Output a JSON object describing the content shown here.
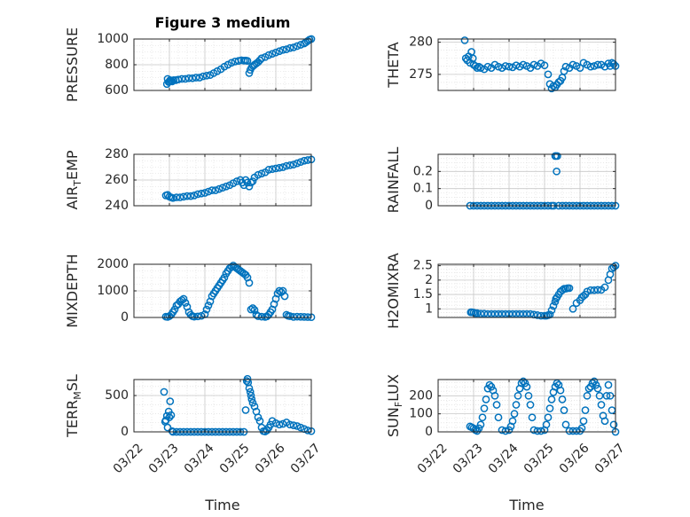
{
  "figure": {
    "title": "Figure 3 medium",
    "marker_color": "#0072BD",
    "axis_color": "#262626",
    "grid": true,
    "grid_minor": true
  },
  "chart_data": [
    {
      "id": "pressure",
      "type": "scatter",
      "ylabel": {
        "main": "PRESSURE",
        "sub": "",
        "tail": ""
      },
      "ylim": [
        600,
        1000
      ],
      "yticks": [
        600,
        800,
        1000
      ],
      "ytick_labels": [
        "600",
        "800",
        "1000"
      ],
      "xlim": [
        0,
        5
      ],
      "xticks": [
        0,
        1,
        2,
        3,
        4,
        5
      ],
      "x": [
        0.93,
        0.95,
        0.98,
        1.0,
        1.02,
        1.05,
        1.08,
        1.12,
        1.18,
        1.25,
        1.35,
        1.45,
        1.55,
        1.65,
        1.75,
        1.85,
        1.95,
        2.05,
        2.15,
        2.25,
        2.35,
        2.45,
        2.55,
        2.65,
        2.75,
        2.85,
        2.95,
        3.03,
        3.1,
        3.15,
        3.2,
        3.25,
        3.28,
        3.32,
        3.36,
        3.4,
        3.45,
        3.5,
        3.55,
        3.6,
        3.7,
        3.8,
        3.9,
        4.0,
        4.1,
        4.2,
        4.3,
        4.4,
        4.5,
        4.6,
        4.7,
        4.8,
        4.85,
        4.9,
        4.95,
        5.0
      ],
      "y": [
        650,
        690,
        665,
        670,
        680,
        675,
        670,
        680,
        680,
        685,
        690,
        690,
        695,
        695,
        700,
        700,
        710,
        715,
        720,
        735,
        750,
        765,
        785,
        800,
        815,
        825,
        830,
        835,
        832,
        833,
        830,
        735,
        760,
        780,
        790,
        800,
        810,
        820,
        835,
        850,
        860,
        875,
        885,
        895,
        905,
        915,
        920,
        930,
        935,
        945,
        955,
        965,
        975,
        985,
        995,
        1000
      ]
    },
    {
      "id": "theta",
      "type": "scatter",
      "ylabel": {
        "main": "THETA",
        "sub": "",
        "tail": ""
      },
      "ylim": [
        272.5,
        280.5
      ],
      "yticks": [
        275,
        280
      ],
      "ytick_labels": [
        "275",
        "280"
      ],
      "xlim": [
        0,
        5
      ],
      "xticks": [
        0,
        1,
        2,
        3,
        4,
        5
      ],
      "x": [
        0.75,
        0.78,
        0.82,
        0.86,
        0.9,
        0.94,
        0.98,
        1.0,
        1.05,
        1.1,
        1.15,
        1.2,
        1.3,
        1.4,
        1.5,
        1.6,
        1.7,
        1.8,
        1.9,
        2.0,
        2.1,
        2.2,
        2.3,
        2.4,
        2.5,
        2.6,
        2.7,
        2.8,
        2.9,
        3.0,
        3.1,
        3.15,
        3.2,
        3.25,
        3.3,
        3.35,
        3.4,
        3.45,
        3.5,
        3.55,
        3.6,
        3.7,
        3.8,
        3.9,
        4.0,
        4.1,
        4.2,
        4.3,
        4.4,
        4.5,
        4.6,
        4.7,
        4.8,
        4.85,
        4.9,
        4.95,
        5.0
      ],
      "y": [
        280.3,
        277.5,
        277.2,
        277.8,
        276.8,
        278.5,
        277.5,
        276.5,
        276.3,
        276.0,
        276.2,
        276.0,
        275.8,
        276.2,
        276.0,
        276.5,
        276.2,
        276.0,
        276.3,
        276.2,
        276.1,
        276.4,
        276.2,
        276.5,
        276.3,
        276.0,
        276.5,
        276.3,
        276.7,
        276.4,
        275.0,
        273.5,
        272.8,
        273.2,
        273.0,
        273.4,
        273.8,
        274.0,
        274.5,
        275.5,
        276.2,
        276.0,
        276.5,
        276.3,
        276.0,
        276.8,
        276.5,
        276.2,
        276.3,
        276.5,
        276.5,
        276.2,
        276.7,
        276.3,
        276.8,
        276.6,
        276.3
      ]
    },
    {
      "id": "air-temp",
      "type": "scatter",
      "ylabel": {
        "main": "AIR",
        "sub": "T",
        "tail": "EMP"
      },
      "ylim": [
        240,
        280
      ],
      "yticks": [
        240,
        260,
        280
      ],
      "ytick_labels": [
        "240",
        "260",
        "280"
      ],
      "xlim": [
        0,
        5
      ],
      "xticks": [
        0,
        1,
        2,
        3,
        4,
        5
      ],
      "x": [
        0.9,
        0.95,
        1.0,
        1.05,
        1.1,
        1.2,
        1.3,
        1.4,
        1.5,
        1.6,
        1.7,
        1.8,
        1.9,
        2.0,
        2.1,
        2.2,
        2.3,
        2.4,
        2.5,
        2.6,
        2.7,
        2.8,
        2.9,
        3.0,
        3.05,
        3.1,
        3.15,
        3.2,
        3.25,
        3.3,
        3.35,
        3.4,
        3.5,
        3.6,
        3.7,
        3.8,
        3.9,
        4.0,
        4.1,
        4.2,
        4.3,
        4.4,
        4.5,
        4.6,
        4.7,
        4.8,
        4.9,
        5.0
      ],
      "y": [
        248,
        248.5,
        247,
        246.5,
        246,
        246.5,
        246.5,
        247,
        247.5,
        247.5,
        248,
        249,
        249.5,
        250,
        251,
        252,
        252,
        253,
        254,
        255,
        256,
        257.5,
        259,
        260,
        258,
        256,
        260,
        258,
        255,
        258,
        259,
        262,
        264,
        265,
        266,
        268,
        268.5,
        269,
        269.5,
        270,
        271,
        271.5,
        272,
        273,
        274,
        275,
        275.5,
        276
      ]
    },
    {
      "id": "rainfall",
      "type": "scatter",
      "ylabel": {
        "main": "RAINFALL",
        "sub": "",
        "tail": ""
      },
      "ylim": [
        0,
        0.3
      ],
      "yticks": [
        0,
        0.1,
        0.2
      ],
      "ytick_labels": [
        "0",
        "0.1",
        "0.2"
      ],
      "xlim": [
        0,
        5
      ],
      "xticks": [
        0,
        1,
        2,
        3,
        4,
        5
      ],
      "x": [
        0.9,
        1.0,
        1.1,
        1.2,
        1.3,
        1.4,
        1.5,
        1.6,
        1.7,
        1.8,
        1.9,
        2.0,
        2.1,
        2.2,
        2.3,
        2.4,
        2.5,
        2.6,
        2.7,
        2.8,
        2.9,
        3.0,
        3.1,
        3.2,
        3.26,
        3.3,
        3.32,
        3.34,
        3.36,
        3.4,
        3.5,
        3.6,
        3.7,
        3.8,
        3.9,
        4.0,
        4.1,
        4.2,
        4.3,
        4.4,
        4.5,
        4.6,
        4.7,
        4.8,
        4.9,
        5.0
      ],
      "y": [
        0,
        0,
        0,
        0,
        0,
        0,
        0,
        0,
        0,
        0,
        0,
        0,
        0,
        0,
        0,
        0,
        0,
        0,
        0,
        0,
        0,
        0,
        0,
        0,
        0,
        0.29,
        0.29,
        0.2,
        0.29,
        0,
        0,
        0,
        0,
        0,
        0,
        0,
        0,
        0,
        0,
        0,
        0,
        0,
        0,
        0,
        0,
        0
      ]
    },
    {
      "id": "mixdepth",
      "type": "scatter",
      "ylabel": {
        "main": "MIXDEPTH",
        "sub": "",
        "tail": ""
      },
      "ylim": [
        0,
        2000
      ],
      "yticks": [
        0,
        1000,
        2000
      ],
      "ytick_labels": [
        "0",
        "1000",
        "2000"
      ],
      "xlim": [
        0,
        5
      ],
      "xticks": [
        0,
        1,
        2,
        3,
        4,
        5
      ],
      "x": [
        0.9,
        0.95,
        1.0,
        1.05,
        1.1,
        1.15,
        1.2,
        1.25,
        1.3,
        1.35,
        1.4,
        1.45,
        1.5,
        1.55,
        1.6,
        1.65,
        1.7,
        1.8,
        1.9,
        2.0,
        2.05,
        2.1,
        2.15,
        2.2,
        2.25,
        2.3,
        2.35,
        2.4,
        2.45,
        2.5,
        2.55,
        2.6,
        2.65,
        2.7,
        2.75,
        2.8,
        2.85,
        2.9,
        2.95,
        3.0,
        3.05,
        3.1,
        3.15,
        3.2,
        3.25,
        3.3,
        3.35,
        3.4,
        3.45,
        3.5,
        3.6,
        3.7,
        3.75,
        3.8,
        3.85,
        3.9,
        3.95,
        4.0,
        4.05,
        4.1,
        4.15,
        4.2,
        4.25,
        4.3,
        4.35,
        4.4,
        4.5,
        4.6,
        4.7,
        4.8,
        4.9,
        5.0
      ],
      "y": [
        30,
        20,
        50,
        100,
        200,
        300,
        450,
        500,
        600,
        650,
        700,
        550,
        400,
        200,
        100,
        50,
        30,
        40,
        60,
        120,
        300,
        450,
        600,
        800,
        900,
        1000,
        1100,
        1200,
        1300,
        1400,
        1500,
        1650,
        1750,
        1850,
        1900,
        1950,
        1900,
        1850,
        1800,
        1750,
        1700,
        1650,
        1600,
        1500,
        1300,
        300,
        350,
        280,
        100,
        50,
        30,
        20,
        40,
        100,
        200,
        300,
        500,
        700,
        900,
        1000,
        950,
        1000,
        800,
        100,
        60,
        50,
        20,
        30,
        25,
        20,
        15,
        10
      ]
    },
    {
      "id": "h2omixra",
      "type": "scatter",
      "ylabel": {
        "main": "H2OMIXRA",
        "sub": "",
        "tail": ""
      },
      "ylim": [
        0.7,
        2.55
      ],
      "yticks": [
        1,
        1.5,
        2,
        2.5
      ],
      "ytick_labels": [
        "1",
        "1.5",
        "2",
        "2.5"
      ],
      "xlim": [
        0,
        5
      ],
      "xticks": [
        0,
        1,
        2,
        3,
        4,
        5
      ],
      "x": [
        0.92,
        0.95,
        1.0,
        1.05,
        1.1,
        1.2,
        1.3,
        1.4,
        1.5,
        1.6,
        1.7,
        1.8,
        1.9,
        2.0,
        2.1,
        2.2,
        2.3,
        2.4,
        2.5,
        2.6,
        2.7,
        2.8,
        2.9,
        3.0,
        3.05,
        3.1,
        3.15,
        3.2,
        3.25,
        3.3,
        3.32,
        3.35,
        3.4,
        3.45,
        3.5,
        3.55,
        3.6,
        3.65,
        3.7,
        3.8,
        3.9,
        4.0,
        4.05,
        4.1,
        4.15,
        4.2,
        4.3,
        4.4,
        4.5,
        4.6,
        4.7,
        4.8,
        4.85,
        4.9,
        4.95,
        5.0
      ],
      "y": [
        0.88,
        0.88,
        0.87,
        0.85,
        0.85,
        0.83,
        0.83,
        0.82,
        0.82,
        0.82,
        0.82,
        0.82,
        0.82,
        0.82,
        0.82,
        0.82,
        0.82,
        0.82,
        0.82,
        0.82,
        0.8,
        0.78,
        0.76,
        0.76,
        0.76,
        0.78,
        0.8,
        0.95,
        1.1,
        1.25,
        1.35,
        1.4,
        1.5,
        1.6,
        1.65,
        1.7,
        1.7,
        1.72,
        1.72,
        1.0,
        1.2,
        1.3,
        1.4,
        1.45,
        1.5,
        1.6,
        1.65,
        1.65,
        1.66,
        1.66,
        1.75,
        2.0,
        2.2,
        2.4,
        2.45,
        2.5
      ]
    },
    {
      "id": "terr-msl",
      "type": "scatter",
      "ylabel": {
        "main": "TERR",
        "sub": "M",
        "tail": "SL"
      },
      "ylim": [
        0,
        720
      ],
      "yticks": [
        0,
        500
      ],
      "ytick_labels": [
        "0",
        "500"
      ],
      "xlim": [
        0,
        5
      ],
      "xticks": [
        0,
        1,
        2,
        3,
        4,
        5
      ],
      "x": [
        0.85,
        0.88,
        0.9,
        0.93,
        0.95,
        0.98,
        1.0,
        1.02,
        1.05,
        1.08,
        1.1,
        1.2,
        1.3,
        1.4,
        1.5,
        1.6,
        1.7,
        1.8,
        1.9,
        2.0,
        2.1,
        2.2,
        2.3,
        2.4,
        2.5,
        2.6,
        2.7,
        2.8,
        2.9,
        3.0,
        3.1,
        3.15,
        3.18,
        3.2,
        3.22,
        3.25,
        3.28,
        3.3,
        3.32,
        3.35,
        3.4,
        3.45,
        3.5,
        3.55,
        3.6,
        3.65,
        3.7,
        3.75,
        3.8,
        3.85,
        3.9,
        4.0,
        4.1,
        4.2,
        4.3,
        4.4,
        4.5,
        4.6,
        4.7,
        4.8,
        4.9,
        5.0
      ],
      "y": [
        550,
        140,
        160,
        220,
        60,
        280,
        200,
        420,
        230,
        10,
        0,
        0,
        0,
        0,
        0,
        0,
        0,
        0,
        0,
        0,
        0,
        0,
        0,
        0,
        0,
        0,
        0,
        0,
        0,
        0,
        0,
        300,
        700,
        730,
        680,
        600,
        550,
        500,
        450,
        400,
        350,
        280,
        200,
        150,
        60,
        10,
        5,
        20,
        60,
        100,
        150,
        120,
        100,
        110,
        130,
        100,
        90,
        80,
        60,
        40,
        20,
        10
      ]
    },
    {
      "id": "sun-flux",
      "type": "scatter",
      "ylabel": {
        "main": "SUN",
        "sub": "F",
        "tail": "LUX"
      },
      "ylim": [
        0,
        290
      ],
      "yticks": [
        0,
        100,
        200
      ],
      "ytick_labels": [
        "0",
        "100",
        "200"
      ],
      "xlim": [
        0,
        5
      ],
      "xticks": [
        0,
        1,
        2,
        3,
        4,
        5
      ],
      "x": [
        0.9,
        0.95,
        1.0,
        1.05,
        1.1,
        1.15,
        1.2,
        1.25,
        1.3,
        1.35,
        1.4,
        1.45,
        1.5,
        1.55,
        1.6,
        1.65,
        1.7,
        1.8,
        1.9,
        2.0,
        2.05,
        2.1,
        2.15,
        2.2,
        2.25,
        2.3,
        2.35,
        2.4,
        2.45,
        2.5,
        2.55,
        2.6,
        2.65,
        2.7,
        2.8,
        2.9,
        3.0,
        3.05,
        3.1,
        3.15,
        3.2,
        3.25,
        3.3,
        3.35,
        3.4,
        3.45,
        3.5,
        3.55,
        3.6,
        3.7,
        3.8,
        3.9,
        4.0,
        4.05,
        4.1,
        4.15,
        4.2,
        4.25,
        4.3,
        4.35,
        4.4,
        4.45,
        4.5,
        4.55,
        4.6,
        4.65,
        4.7,
        4.75,
        4.8,
        4.85,
        4.9,
        4.95,
        5.0
      ],
      "y": [
        30,
        25,
        20,
        10,
        5,
        20,
        40,
        80,
        130,
        180,
        240,
        260,
        250,
        230,
        200,
        150,
        80,
        10,
        5,
        10,
        30,
        60,
        100,
        150,
        200,
        240,
        270,
        280,
        270,
        250,
        200,
        150,
        80,
        10,
        5,
        5,
        10,
        40,
        80,
        130,
        180,
        220,
        250,
        270,
        260,
        230,
        180,
        120,
        40,
        5,
        5,
        5,
        5,
        20,
        60,
        120,
        200,
        240,
        250,
        270,
        280,
        260,
        240,
        200,
        150,
        90,
        60,
        200,
        260,
        200,
        120,
        40,
        0
      ]
    }
  ],
  "xtick_labels": [
    "03/22",
    "03/23",
    "03/24",
    "03/25",
    "03/26",
    "03/27"
  ],
  "xlabel": "Time"
}
